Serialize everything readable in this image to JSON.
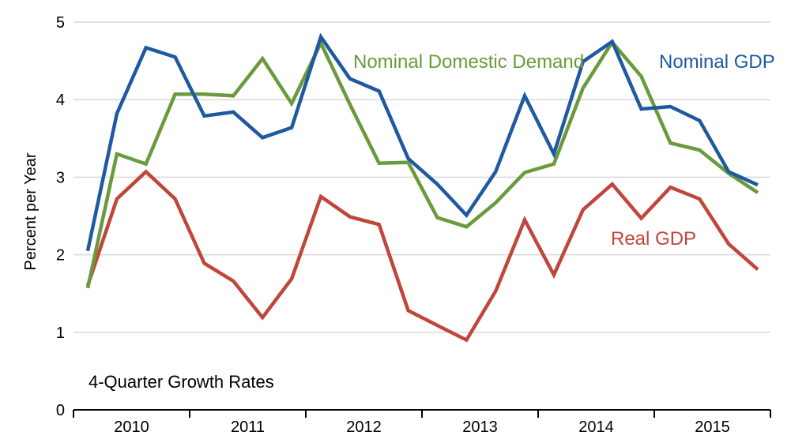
{
  "chart_data": {
    "type": "line",
    "title": "",
    "xlabel": "",
    "ylabel": "Percent per Year",
    "annotation": "4-Quarter Growth Rates",
    "ylim": [
      0,
      5
    ],
    "yticks": [
      "0",
      "1",
      "2",
      "3",
      "4",
      "5"
    ],
    "grid": true,
    "year_labels": [
      "2010",
      "2011",
      "2012",
      "2013",
      "2014",
      "2015"
    ],
    "x": [
      "2010Q1",
      "2010Q2",
      "2010Q3",
      "2010Q4",
      "2011Q1",
      "2011Q2",
      "2011Q3",
      "2011Q4",
      "2012Q1",
      "2012Q2",
      "2012Q3",
      "2012Q4",
      "2013Q1",
      "2013Q2",
      "2013Q3",
      "2013Q4",
      "2014Q1",
      "2014Q2",
      "2014Q3",
      "2014Q4",
      "2015Q1",
      "2015Q2",
      "2015Q3",
      "2015Q4"
    ],
    "series": [
      {
        "name": "Nominal GDP",
        "color": "#1f5aa0",
        "values": [
          2.05,
          3.82,
          4.67,
          4.55,
          3.79,
          3.84,
          3.51,
          3.64,
          4.81,
          4.27,
          4.11,
          3.24,
          2.91,
          2.51,
          3.07,
          4.05,
          3.3,
          4.49,
          4.75,
          3.88,
          3.91,
          3.73,
          3.07,
          2.9
        ]
      },
      {
        "name": "Nominal Domestic Demand",
        "color": "#6a9a3c",
        "values": [
          1.57,
          3.3,
          3.17,
          4.07,
          4.07,
          4.05,
          4.53,
          3.95,
          4.73,
          3.94,
          3.18,
          3.19,
          2.48,
          2.36,
          2.67,
          3.06,
          3.17,
          4.15,
          4.74,
          4.3,
          3.44,
          3.35,
          3.05,
          2.8
        ]
      },
      {
        "name": "Real GDP",
        "color": "#c0463a",
        "values": [
          1.6,
          2.72,
          3.07,
          2.72,
          1.89,
          1.66,
          1.19,
          1.69,
          2.75,
          2.49,
          2.39,
          1.28,
          1.09,
          0.9,
          1.53,
          2.45,
          1.74,
          2.58,
          2.91,
          2.47,
          2.87,
          2.72,
          2.14,
          1.81
        ]
      }
    ]
  }
}
